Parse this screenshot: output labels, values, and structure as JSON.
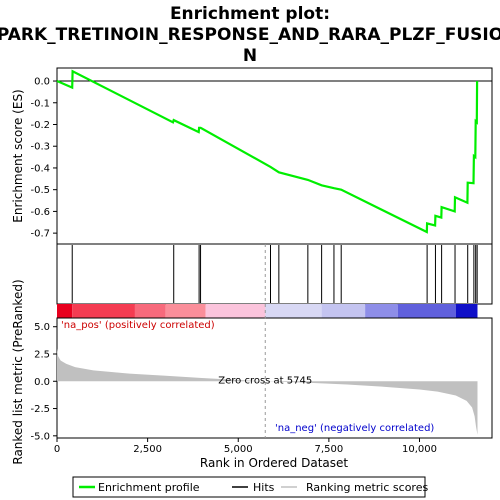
{
  "chart_data": {
    "type": "line",
    "title": "Enrichment plot: PARK_TRETINOIN_RESPONSE_AND_RARA_PLZF_FUSION",
    "title_lines": [
      "Enrichment plot:",
      "PARK_TRETINOIN_RESPONSE_AND_RARA_PLZF_FUSIO",
      "N"
    ],
    "es_panel": {
      "ylabel": "Enrichment score (ES)",
      "ylim": [
        -0.75,
        0.06
      ],
      "yticks": [
        0.0,
        -0.1,
        -0.2,
        -0.3,
        -0.4,
        -0.5,
        -0.6,
        -0.7
      ],
      "ytick_labels": [
        "0.0",
        "-0.1",
        "-0.2",
        "-0.3",
        "-0.4",
        "-0.5",
        "-0.6",
        "-0.7"
      ],
      "series": [
        {
          "name": "Enrichment profile",
          "color": "#00ee00",
          "x": [
            0,
            420,
            430,
            3200,
            3220,
            3910,
            3920,
            3950,
            3960,
            5890,
            6120,
            6920,
            7300,
            7640,
            7840,
            10200,
            10210,
            10430,
            10440,
            10600,
            10610,
            10970,
            10980,
            11320,
            11330,
            11490,
            11500,
            11540,
            11550,
            11580,
            11590
          ],
          "y": [
            0.0,
            -0.03,
            0.045,
            -0.19,
            -0.18,
            -0.235,
            -0.215,
            -0.215,
            -0.215,
            -0.395,
            -0.42,
            -0.455,
            -0.48,
            -0.493,
            -0.5,
            -0.695,
            -0.655,
            -0.665,
            -0.62,
            -0.628,
            -0.58,
            -0.6,
            -0.535,
            -0.56,
            -0.468,
            -0.47,
            -0.345,
            -0.35,
            -0.185,
            -0.19,
            0.0
          ]
        }
      ]
    },
    "hits": [
      420,
      3220,
      3920,
      3960,
      5890,
      6120,
      6920,
      7300,
      7640,
      7840,
      10210,
      10440,
      10610,
      10980,
      11330,
      11500,
      11550,
      11590
    ],
    "gradient_bar": {
      "segments": [
        {
          "from": 0,
          "to": 420,
          "color": "#e8001e"
        },
        {
          "from": 420,
          "to": 2150,
          "color": "#f43c52"
        },
        {
          "from": 2150,
          "to": 3000,
          "color": "#f76a7c"
        },
        {
          "from": 3000,
          "to": 4100,
          "color": "#fa8e9a"
        },
        {
          "from": 4100,
          "to": 5750,
          "color": "#fbc4dc"
        },
        {
          "from": 5750,
          "to": 7300,
          "color": "#d8d8f4"
        },
        {
          "from": 7300,
          "to": 8500,
          "color": "#c4c4f0"
        },
        {
          "from": 8500,
          "to": 9400,
          "color": "#8e8ee8"
        },
        {
          "from": 9400,
          "to": 11000,
          "color": "#6060dc"
        },
        {
          "from": 11000,
          "to": 11600,
          "color": "#1010c8"
        }
      ]
    },
    "metric_panel": {
      "ylabel": "Ranked list metric (PreRanked)",
      "ylim": [
        -5.2,
        5.8
      ],
      "yticks": [
        5.0,
        2.5,
        0.0,
        -2.5,
        -5.0
      ],
      "ytick_labels": [
        "5.0",
        "2.5",
        "0.0",
        "-2.5",
        "-5.0"
      ],
      "series": [
        {
          "name": "Ranking metric scores",
          "color": "#c0c0c0",
          "x": [
            0,
            30,
            100,
            250,
            500,
            1000,
            1500,
            2000,
            3000,
            4000,
            5000,
            5745,
            7000,
            8000,
            9000,
            10000,
            10500,
            11000,
            11300,
            11450,
            11520,
            11560,
            11600
          ],
          "y": [
            3.0,
            2.3,
            1.9,
            1.6,
            1.3,
            1.0,
            0.85,
            0.7,
            0.5,
            0.3,
            0.12,
            0.0,
            -0.15,
            -0.3,
            -0.5,
            -0.75,
            -0.95,
            -1.3,
            -1.8,
            -2.4,
            -3.2,
            -4.2,
            -4.9
          ]
        }
      ],
      "annotations": {
        "zero_cross": "Zero cross at 5745",
        "zero_cross_x": 5745,
        "pos_label": "'na_pos' (positively correlated)",
        "neg_label": "'na_neg' (negatively correlated)"
      }
    },
    "x_axis": {
      "label": "Rank in Ordered Dataset",
      "xlim": [
        0,
        12000
      ],
      "ticks": [
        0,
        2500,
        5000,
        7500,
        10000
      ],
      "tick_labels": [
        "0",
        "2,500",
        "5,000",
        "7,500",
        "10,000"
      ]
    },
    "legend": {
      "placement": "bottom",
      "entries": [
        {
          "label": "Enrichment profile",
          "color": "#00ee00"
        },
        {
          "label": "Hits",
          "color": "#000000"
        },
        {
          "label": "Ranking metric scores",
          "color": "#c0c0c0"
        }
      ]
    },
    "grid": false
  }
}
